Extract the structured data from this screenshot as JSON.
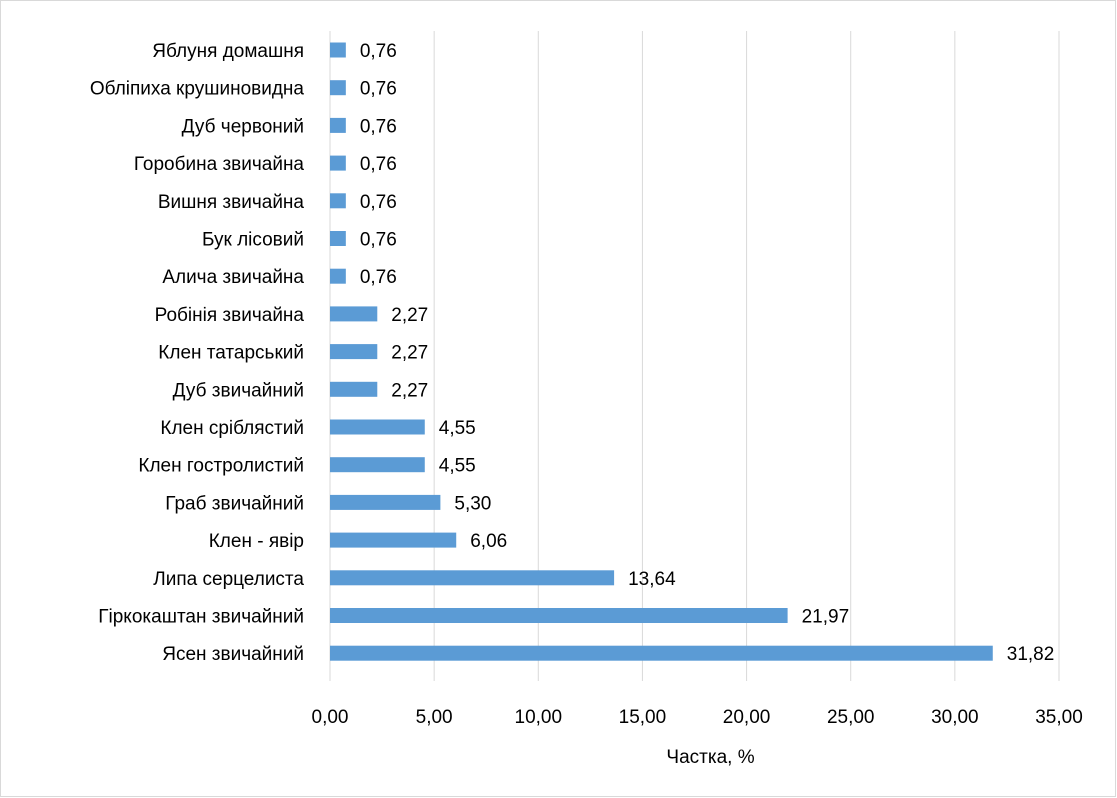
{
  "chart_data": {
    "type": "bar",
    "orientation": "horizontal",
    "categories": [
      "Яблуня домашня",
      "Обліпиха крушиновидна",
      "Дуб червоний",
      "Горобина звичайна",
      "Вишня звичайна",
      "Бук лісовий",
      "Алича звичайна",
      "Робінія звичайна",
      "Клен татарський",
      "Дуб звичайний",
      "Клен сріблястий",
      "Клен гостролистий",
      "Граб звичайний",
      "Клен - явір",
      "Липа серцелиста",
      "Гіркокаштан звичайний",
      "Ясен звичайний"
    ],
    "values": [
      0.76,
      0.76,
      0.76,
      0.76,
      0.76,
      0.76,
      0.76,
      2.27,
      2.27,
      2.27,
      4.55,
      4.55,
      5.3,
      6.06,
      13.64,
      21.97,
      31.82
    ],
    "value_labels": [
      "0,76",
      "0,76",
      "0,76",
      "0,76",
      "0,76",
      "0,76",
      "0,76",
      "2,27",
      "2,27",
      "2,27",
      "4,55",
      "4,55",
      "5,30",
      "6,06",
      "13,64",
      "21,97",
      "31,82"
    ],
    "xlim": [
      0,
      35
    ],
    "x_ticks": [
      0,
      5,
      10,
      15,
      20,
      25,
      30,
      35
    ],
    "x_tick_labels": [
      "0,00",
      "5,00",
      "10,00",
      "15,00",
      "20,00",
      "25,00",
      "30,00",
      "35,00"
    ],
    "title": "",
    "xlabel": "Частка, %",
    "ylabel": "",
    "grid": "vertical",
    "legend": "none",
    "bar_color": "#5b9bd5",
    "grid_color": "#d9d9d9"
  }
}
